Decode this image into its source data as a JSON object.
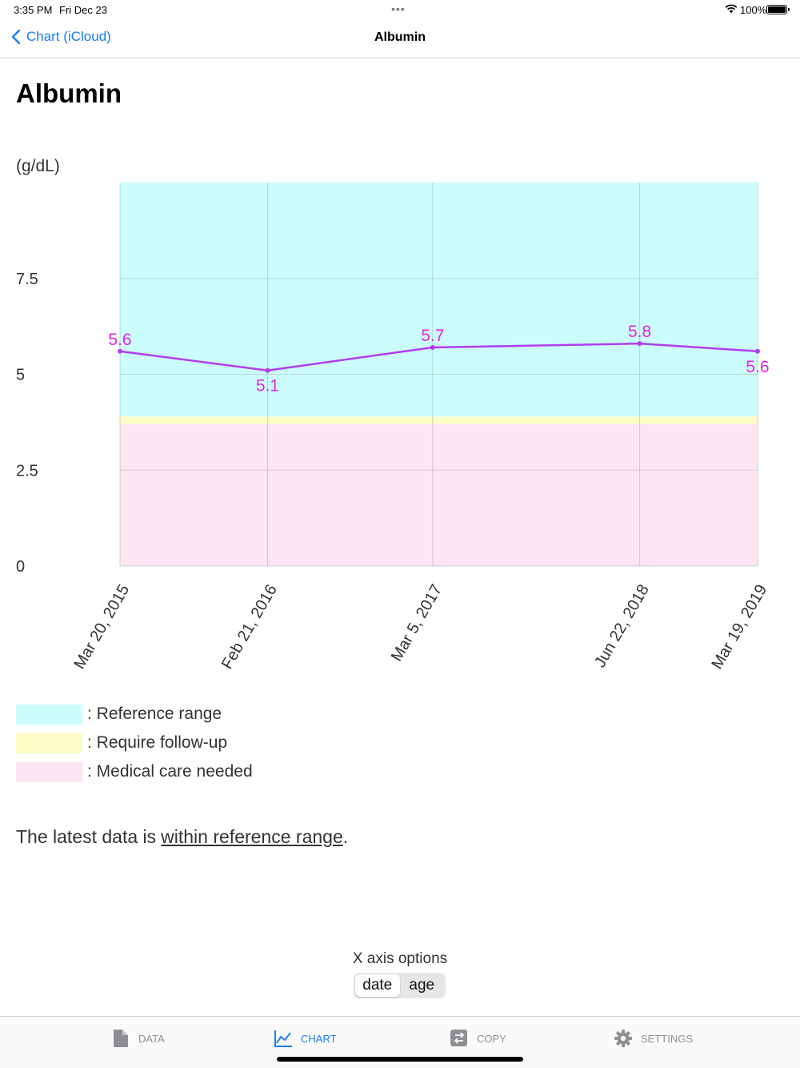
{
  "status_bar": {
    "time": "3:35 PM",
    "date": "Fri Dec 23",
    "battery": "100%"
  },
  "nav": {
    "back_label": "Chart (iCloud)",
    "title": "Albumin"
  },
  "page_title": "Albumin",
  "chart_data": {
    "type": "line",
    "ylabel": "(g/dL)",
    "ylim": [
      0,
      10
    ],
    "y_ticks": [
      "0",
      "2.5",
      "5",
      "7.5"
    ],
    "x": [
      "Mar 20, 2015",
      "Feb 21, 2016",
      "Mar 5, 2017",
      "Jun 22, 2018",
      "Mar 19, 2019"
    ],
    "x_days_from_first": [
      0,
      338,
      716,
      1190,
      1460
    ],
    "values": [
      5.6,
      5.1,
      5.7,
      5.8,
      5.6
    ],
    "data_labels": [
      "5.6",
      "5.1",
      "5.7",
      "5.8",
      "5.6"
    ],
    "bands": [
      {
        "name": "Medical care needed",
        "from": 0,
        "to": 3.7,
        "color": "#fde6f2"
      },
      {
        "name": "Require follow-up",
        "from": 3.7,
        "to": 3.9,
        "color": "#fdfcc6"
      },
      {
        "name": "Reference range",
        "from": 3.9,
        "to": 10,
        "color": "#ccfdfd"
      }
    ],
    "line_color": "#b23cf0",
    "label_color": "#e223e8",
    "grid": true
  },
  "legend": [
    {
      "label": ":  Reference range",
      "color": "#ccfdfd"
    },
    {
      "label": ":  Require follow-up",
      "color": "#fdfcc6"
    },
    {
      "label": ":  Medical care needed",
      "color": "#fde6f2"
    }
  ],
  "summary": {
    "prefix": "The latest data is",
    "status": "within reference range",
    "suffix": "."
  },
  "x_axis_options": {
    "title": "X axis options",
    "options": [
      "date",
      "age"
    ],
    "selected": "date"
  },
  "tab_bar": {
    "tabs": [
      {
        "label": "DATA",
        "icon": "document-icon"
      },
      {
        "label": "CHART",
        "icon": "chart-line-icon",
        "active": true
      },
      {
        "label": "COPY",
        "icon": "copy-swap-icon"
      },
      {
        "label": "SETTINGS",
        "icon": "gear-icon"
      }
    ]
  },
  "colors": {
    "accent": "#1a7cf5",
    "inactive": "#8e8e93"
  }
}
